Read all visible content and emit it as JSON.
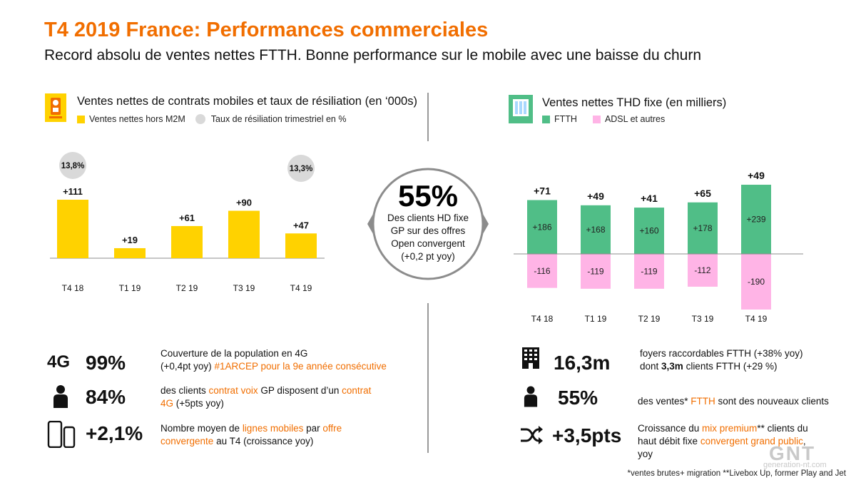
{
  "header": {
    "title": "T4 2019 France: Performances commerciales",
    "subtitle": "Record absolu de ventes nettes FTTH. Bonne performance sur le mobile avec une baisse du churn"
  },
  "colors": {
    "accent": "#f16e00",
    "mobile_bar": "#ffd200",
    "churn_dot": "#d9d9d9",
    "ftth": "#50be87",
    "adsl": "#ffb4e6"
  },
  "left_panel": {
    "title": "Ventes nettes de contrats mobiles et taux de résiliation (en ‘000s)",
    "legend_bar": "Ventes nettes  hors M2M",
    "legend_dot": "Taux de résiliation trimestriel en %"
  },
  "right_panel": {
    "title": "Ventes nettes THD fixe (en milliers)",
    "legend_ftth": "FTTH",
    "legend_adsl": "ADSL et autres"
  },
  "center_circle": {
    "value": "55%",
    "line1": "Des clients HD fixe",
    "line2": "GP sur des offres",
    "line3": "Open convergent",
    "line4": "(+0,2 pt yoy)"
  },
  "chart_data": [
    {
      "type": "bar",
      "title": "Ventes nettes de contrats mobiles et taux de résiliation (en ‘000s)",
      "categories": [
        "T4 18",
        "T1 19",
        "T2 19",
        "T3 19",
        "T4 19"
      ],
      "series": [
        {
          "name": "Ventes nettes  hors M2M",
          "values": [
            111,
            19,
            61,
            90,
            47
          ],
          "labels": [
            "+111",
            "+19",
            "+61",
            "+90",
            "+47"
          ]
        },
        {
          "name": "Taux de résiliation trimestriel en %",
          "values": [
            13.8,
            null,
            null,
            null,
            13.3
          ],
          "labels": [
            "13,8%",
            "",
            "",
            "",
            "13,3%"
          ]
        }
      ],
      "ylim": [
        0,
        111
      ]
    },
    {
      "type": "bar",
      "title": "Ventes nettes THD fixe (en milliers)",
      "categories": [
        "T4 18",
        "T1 19",
        "T2 19",
        "T3 19",
        "T4 19"
      ],
      "totals": [
        71,
        49,
        41,
        65,
        49
      ],
      "total_labels": [
        "+71",
        "+49",
        "+41",
        "+65",
        "+49"
      ],
      "series": [
        {
          "name": "FTTH",
          "values": [
            186,
            168,
            160,
            178,
            239
          ],
          "labels": [
            "+186",
            "+168",
            "+160",
            "+178",
            "+239"
          ]
        },
        {
          "name": "ADSL et autres",
          "values": [
            -116,
            -119,
            -119,
            -112,
            -190
          ],
          "labels": [
            "-116",
            "-119",
            "-119",
            "-112",
            "-190"
          ]
        }
      ],
      "ylim": [
        -190,
        239
      ]
    }
  ],
  "stats_left": [
    {
      "icon": "4g-icon",
      "icon_text": "4G",
      "value": "99%",
      "text_plain1": "Couverture de la population en 4G",
      "text_plain2": "(+0,4pt yoy)",
      "text_orange": "#1ARCEP pour la 9e année consécutive"
    },
    {
      "icon": "person-icon",
      "value": "84%",
      "p1": "des clients ",
      "o1": "contrat voix",
      "p2": " GP disposent d’un ",
      "o2": "contrat",
      "o3": "4G",
      "p3": " (+5pts yoy)"
    },
    {
      "icon": "phones-icon",
      "value": "+2,1%",
      "p1": "Nombre moyen de ",
      "o1": "lignes mobiles",
      "p2": " par ",
      "o2": "offre",
      "o3": "convergente",
      "p3": " au T4 (croissance yoy)"
    }
  ],
  "stats_right": [
    {
      "icon": "building-icon",
      "value": "16,3m",
      "line1": "foyers raccordables FTTH (+38% yoy)",
      "l2a": "dont ",
      "l2b": "3,3m",
      "l2c": "  clients FTTH (+29 %)"
    },
    {
      "icon": "person-icon",
      "value": "55%",
      "p1": "des ventes* ",
      "o1": "FTTH",
      "p2": " sont des nouveaux clients"
    },
    {
      "icon": "shuffle-icon",
      "value": "+3,5pts",
      "p1": "Croissance du ",
      "o1": "mix premium",
      "p2": "** clients du",
      "p3": "haut débit fixe ",
      "o2": "convergent grand public",
      "p4": ",",
      "p5": "yoy"
    }
  ],
  "footnote": "*ventes brutes+ migration   **Livebox Up, former Play and Jet",
  "watermark": {
    "logo": "GNT",
    "site": "generation-nt.com"
  }
}
